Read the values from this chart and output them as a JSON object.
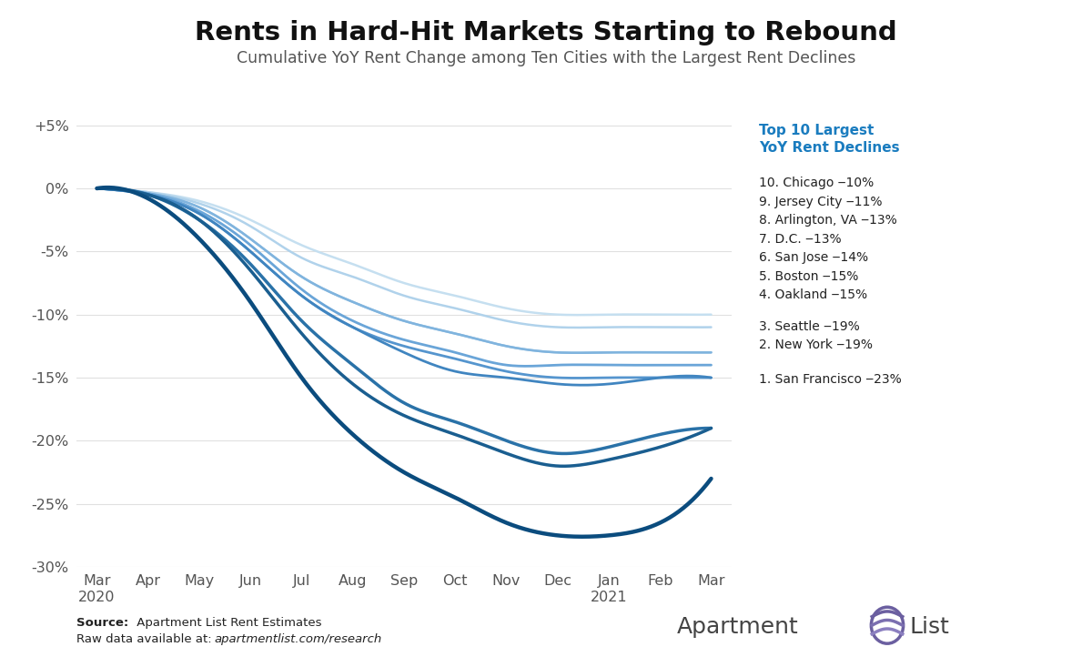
{
  "title": "Rents in Hard-Hit Markets Starting to Rebound",
  "subtitle": "Cumulative YoY Rent Change among Ten Cities with the Largest Rent Declines",
  "xlabel_months": [
    "Mar\n2020",
    "Apr",
    "May",
    "Jun",
    "Jul",
    "Aug",
    "Sep",
    "Oct",
    "Nov",
    "Dec",
    "Jan\n2021",
    "Feb",
    "Mar"
  ],
  "ylim": [
    -30,
    7
  ],
  "yticks": [
    5,
    0,
    -5,
    -10,
    -15,
    -20,
    -25,
    -30
  ],
  "ytick_labels": [
    "+5%",
    "0%",
    "-5%",
    "-10%",
    "-15%",
    "-20%",
    "-25%",
    "-30%"
  ],
  "legend_header": "Top 10 Largest\nYoY Rent Declines",
  "legend_entries": [
    "10. Chicago ‒10%",
    "9. Jersey City ‒11%",
    "8. Arlington, VA ‒13%",
    "7. D.C. ‒13%",
    "6. San Jose ‒14%",
    "5. Boston ‒15%",
    "4. Oakland ‒15%",
    "3. Seattle ‒19%",
    "2. New York ‒19%",
    "1. San Francisco ‒23%"
  ],
  "background_color": "#ffffff",
  "series": {
    "Chicago": [
      0,
      -0.3,
      -1.0,
      -2.5,
      -4.5,
      -6.0,
      -7.5,
      -8.5,
      -9.5,
      -10.0,
      -10.0,
      -10.0,
      -10.0
    ],
    "Jersey_City": [
      0,
      -0.3,
      -1.2,
      -3.0,
      -5.5,
      -7.0,
      -8.5,
      -9.5,
      -10.5,
      -11.0,
      -11.0,
      -11.0,
      -11.0
    ],
    "Arlington_VA": [
      0,
      -0.4,
      -1.5,
      -4.0,
      -7.0,
      -9.0,
      -10.5,
      -11.5,
      -12.5,
      -13.0,
      -13.0,
      -13.0,
      -13.0
    ],
    "DC": [
      0,
      -0.4,
      -1.5,
      -4.0,
      -7.0,
      -9.0,
      -10.5,
      -11.5,
      -12.5,
      -13.0,
      -13.0,
      -13.0,
      -13.0
    ],
    "San_Jose": [
      0,
      -0.4,
      -1.8,
      -4.5,
      -8.0,
      -10.5,
      -12.0,
      -13.0,
      -14.0,
      -14.0,
      -14.0,
      -14.0,
      -14.0
    ],
    "Boston": [
      0,
      -0.5,
      -2.0,
      -5.0,
      -8.5,
      -11.0,
      -12.5,
      -13.5,
      -14.5,
      -15.0,
      -15.0,
      -15.0,
      -15.0
    ],
    "Oakland": [
      0,
      -0.5,
      -2.0,
      -5.0,
      -8.5,
      -11.0,
      -13.0,
      -14.5,
      -15.0,
      -15.5,
      -15.5,
      -15.0,
      -15.0
    ],
    "Seattle": [
      0,
      -0.5,
      -2.5,
      -6.0,
      -10.5,
      -14.0,
      -17.0,
      -18.5,
      -20.0,
      -21.0,
      -20.5,
      -19.5,
      -19.0
    ],
    "New_York": [
      0,
      -0.5,
      -2.5,
      -6.5,
      -11.5,
      -15.5,
      -18.0,
      -19.5,
      -21.0,
      -22.0,
      -21.5,
      -20.5,
      -19.0
    ],
    "San_Francisco": [
      0,
      -0.8,
      -4.0,
      -9.0,
      -15.0,
      -19.5,
      -22.5,
      -24.5,
      -26.5,
      -27.5,
      -27.5,
      -26.5,
      -23.0
    ]
  },
  "colors": {
    "Chicago": "#c5dff0",
    "Jersey_City": "#b0d2eb",
    "Arlington_VA": "#96c3e5",
    "DC": "#80b4de",
    "San_Jose": "#6aa5d8",
    "Boston": "#5595ce",
    "Oakland": "#4085c0",
    "Seattle": "#2a72a8",
    "New_York": "#1a5e90",
    "San_Francisco": "#0b4c7e"
  },
  "linewidths": {
    "Chicago": 1.8,
    "Jersey_City": 1.8,
    "Arlington_VA": 1.8,
    "DC": 1.8,
    "San_Jose": 2.0,
    "Boston": 2.0,
    "Oakland": 2.0,
    "Seattle": 2.5,
    "New_York": 2.5,
    "San_Francisco": 3.2
  },
  "legend_color": "#1a7cbf",
  "text_color": "#333333",
  "grid_color": "#e0e0e0"
}
